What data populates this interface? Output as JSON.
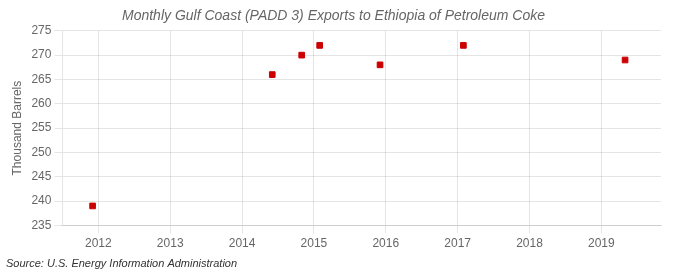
{
  "chart_data": {
    "type": "scatter",
    "title": "Monthly Gulf Coast (PADD 3) Exports to Ethiopia of Petroleum Coke",
    "ylabel": "Thousand Barrels",
    "annotation": "Source: U.S. Energy Information Administration",
    "x": [
      2011.92,
      2014.42,
      2014.83,
      2015.08,
      2015.92,
      2017.08,
      2019.33
    ],
    "values": [
      239,
      266,
      270,
      272,
      268,
      272,
      269
    ],
    "color": "#cc0000",
    "marker": "square",
    "xlim": [
      2011.5,
      2019.83
    ],
    "xticks": [
      2012,
      2013,
      2014,
      2015,
      2016,
      2017,
      2018,
      2019
    ],
    "ylim": [
      235,
      275
    ],
    "yticks": [
      235,
      240,
      245,
      250,
      255,
      260,
      265,
      270,
      275
    ],
    "grid": true
  }
}
